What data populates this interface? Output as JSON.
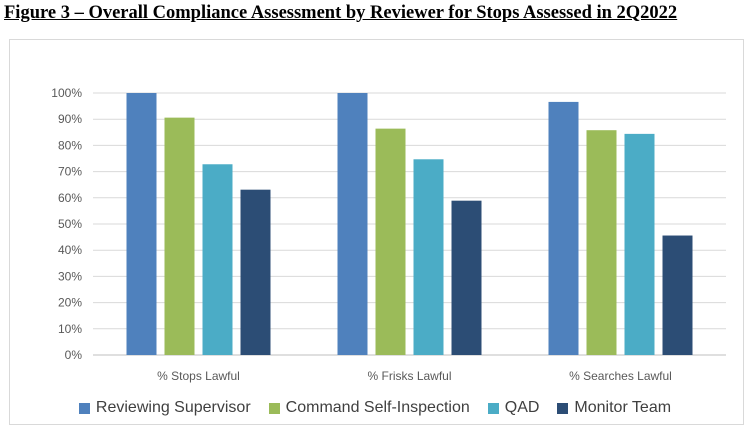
{
  "figure_title": "Figure 3 – Overall Compliance Assessment by Reviewer for Stops Assessed in 2Q2022",
  "chart_data": {
    "type": "bar",
    "title": "Figure 3 – Overall Compliance Assessment by Reviewer for Stops Assessed in 2Q2022",
    "xlabel": "",
    "ylabel": "",
    "ylim": [
      0,
      100
    ],
    "yticks": [
      "0%",
      "10%",
      "20%",
      "30%",
      "40%",
      "50%",
      "60%",
      "70%",
      "80%",
      "90%",
      "100%"
    ],
    "grid": true,
    "legend_position": "bottom",
    "categories": [
      "% Stops Lawful",
      "% Frisks Lawful",
      "% Searches Lawful"
    ],
    "series": [
      {
        "name": "Reviewing Supervisor",
        "color": "#4f81bd",
        "values": [
          100,
          100,
          96.6
        ]
      },
      {
        "name": "Command Self-Inspection",
        "color": "#9bbb59",
        "values": [
          90.6,
          86.4,
          85.8
        ]
      },
      {
        "name": "QAD",
        "color": "#4bacc6",
        "values": [
          72.8,
          74.7,
          84.4
        ]
      },
      {
        "name": "Monitor Team",
        "color": "#2c4d75",
        "values": [
          63.1,
          58.9,
          45.6
        ]
      }
    ]
  }
}
